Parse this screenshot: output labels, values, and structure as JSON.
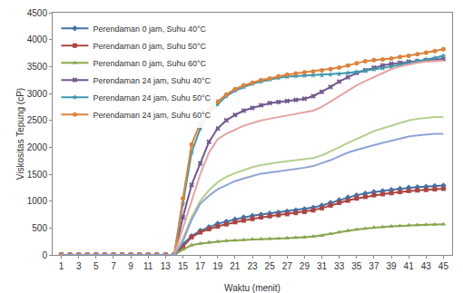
{
  "chart_data": {
    "type": "line",
    "x_label": "Waktu (menit)",
    "y_label": "Viskositas Tepung (cP)",
    "x": [
      1,
      2,
      3,
      4,
      5,
      6,
      7,
      8,
      9,
      10,
      11,
      12,
      13,
      14,
      15,
      16,
      17,
      18,
      19,
      20,
      21,
      22,
      23,
      24,
      25,
      26,
      27,
      28,
      29,
      30,
      31,
      32,
      33,
      34,
      35,
      36,
      37,
      38,
      39,
      40,
      41,
      42,
      43,
      44,
      45
    ],
    "xlim": [
      0,
      46
    ],
    "xticks": [
      1,
      3,
      5,
      7,
      9,
      11,
      13,
      15,
      17,
      19,
      21,
      23,
      25,
      27,
      29,
      31,
      33,
      35,
      37,
      39,
      41,
      43,
      45
    ],
    "ylim": [
      0,
      4500
    ],
    "yticks": [
      0,
      500,
      1000,
      1500,
      2000,
      2500,
      3000,
      3500,
      4000,
      4500
    ],
    "grid": false,
    "legend": "top-left",
    "series": [
      {
        "name": "Perendaman 0 jam, Suhu 40°C",
        "color": "#4572A7",
        "marker": "diamond",
        "values": [
          0,
          0,
          0,
          0,
          0,
          0,
          0,
          0,
          0,
          0,
          0,
          0,
          0,
          0,
          200,
          350,
          450,
          520,
          580,
          620,
          660,
          700,
          730,
          750,
          770,
          790,
          810,
          830,
          850,
          880,
          920,
          970,
          1020,
          1070,
          1110,
          1140,
          1170,
          1190,
          1210,
          1230,
          1250,
          1260,
          1270,
          1280,
          1290
        ]
      },
      {
        "name": "Perendaman 0 jam, Suhu 50°C",
        "color": "#AA4643",
        "marker": "square",
        "values": [
          0,
          0,
          0,
          0,
          0,
          0,
          0,
          0,
          0,
          0,
          0,
          0,
          0,
          0,
          150,
          330,
          420,
          480,
          530,
          570,
          610,
          640,
          670,
          700,
          720,
          740,
          760,
          780,
          800,
          830,
          870,
          920,
          970,
          1010,
          1050,
          1080,
          1110,
          1130,
          1150,
          1170,
          1190,
          1200,
          1210,
          1220,
          1230
        ]
      },
      {
        "name": "Perendaman 0 jam, Suhu 60°C",
        "color": "#89A54E",
        "marker": "triangle",
        "values": [
          0,
          0,
          0,
          0,
          0,
          0,
          0,
          0,
          0,
          0,
          0,
          0,
          0,
          0,
          100,
          180,
          210,
          230,
          250,
          260,
          270,
          280,
          290,
          295,
          300,
          305,
          310,
          320,
          330,
          340,
          360,
          390,
          420,
          450,
          470,
          490,
          510,
          520,
          530,
          540,
          550,
          555,
          560,
          565,
          570
        ]
      },
      {
        "name": "Perendaman 24 jam, Suhu 40°C",
        "color": "#71588F",
        "marker": "x",
        "values": [
          0,
          0,
          0,
          0,
          0,
          0,
          0,
          0,
          0,
          0,
          0,
          0,
          0,
          0,
          700,
          1300,
          1700,
          2100,
          2350,
          2500,
          2600,
          2680,
          2730,
          2780,
          2820,
          2840,
          2860,
          2880,
          2900,
          2950,
          3030,
          3120,
          3220,
          3300,
          3380,
          3430,
          3480,
          3520,
          3550,
          3570,
          3590,
          3600,
          3620,
          3630,
          3640
        ]
      },
      {
        "name": "Perendaman 24 jam, Suhu 50°C",
        "color": "#4198AF",
        "marker": "star",
        "values": [
          0,
          0,
          0,
          0,
          0,
          0,
          0,
          0,
          0,
          0,
          0,
          0,
          0,
          0,
          950,
          1900,
          2350,
          2650,
          2800,
          2950,
          3050,
          3120,
          3180,
          3220,
          3260,
          3290,
          3310,
          3320,
          3330,
          3340,
          3340,
          3350,
          3360,
          3380,
          3400,
          3420,
          3450,
          3470,
          3500,
          3530,
          3560,
          3600,
          3630,
          3660,
          3700
        ]
      },
      {
        "name": "Perendaman 24 jam, Suhu 60°C",
        "color": "#DB843D",
        "marker": "circle",
        "values": [
          0,
          0,
          0,
          0,
          0,
          0,
          0,
          0,
          0,
          0,
          0,
          0,
          0,
          0,
          1050,
          2050,
          2450,
          2700,
          2850,
          2980,
          3080,
          3150,
          3200,
          3250,
          3280,
          3320,
          3350,
          3370,
          3390,
          3410,
          3430,
          3450,
          3480,
          3520,
          3560,
          3600,
          3620,
          3630,
          3650,
          3680,
          3700,
          3730,
          3760,
          3790,
          3820
        ]
      },
      {
        "color": "#E3A3A1",
        "marker": "none",
        "values": [
          0,
          0,
          0,
          0,
          0,
          0,
          0,
          0,
          0,
          0,
          0,
          0,
          0,
          0,
          500,
          1000,
          1500,
          1900,
          2150,
          2250,
          2330,
          2400,
          2450,
          2500,
          2530,
          2560,
          2600,
          2630,
          2650,
          2680,
          2750,
          2850,
          2950,
          3050,
          3150,
          3230,
          3300,
          3380,
          3450,
          3500,
          3540,
          3570,
          3590,
          3600,
          3610
        ]
      },
      {
        "color": "#B5CF8E",
        "marker": "none",
        "values": [
          0,
          0,
          0,
          0,
          0,
          0,
          0,
          0,
          0,
          0,
          0,
          0,
          0,
          0,
          300,
          700,
          1000,
          1200,
          1350,
          1450,
          1520,
          1580,
          1630,
          1670,
          1700,
          1720,
          1740,
          1760,
          1780,
          1800,
          1850,
          1920,
          2000,
          2080,
          2150,
          2230,
          2300,
          2350,
          2400,
          2450,
          2500,
          2530,
          2550,
          2560,
          2560
        ]
      },
      {
        "color": "#8EA3D6",
        "marker": "none",
        "values": [
          0,
          0,
          0,
          0,
          0,
          0,
          0,
          0,
          0,
          0,
          0,
          0,
          0,
          0,
          250,
          650,
          950,
          1100,
          1220,
          1300,
          1370,
          1420,
          1470,
          1510,
          1530,
          1550,
          1570,
          1600,
          1620,
          1650,
          1700,
          1760,
          1830,
          1900,
          1950,
          2000,
          2040,
          2080,
          2120,
          2160,
          2200,
          2220,
          2240,
          2250,
          2250
        ]
      }
    ]
  }
}
